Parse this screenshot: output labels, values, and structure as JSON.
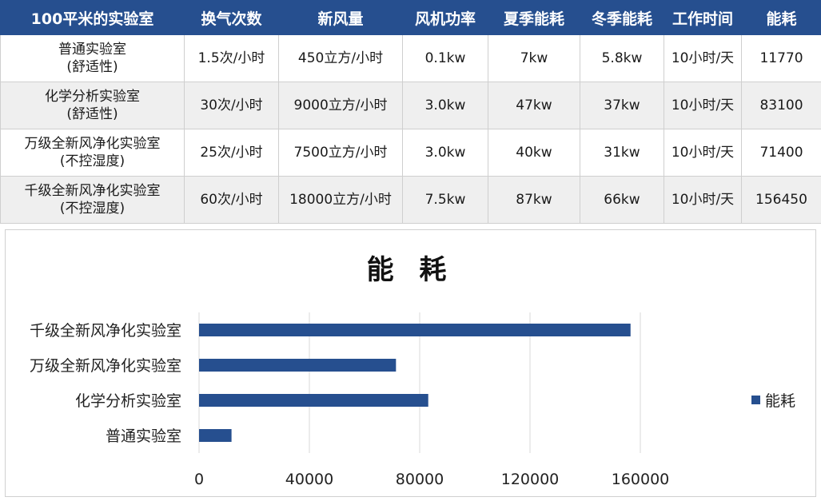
{
  "table": {
    "headers": [
      "100平米的实验室",
      "换气次数",
      "新风量",
      "风机功率",
      "夏季能耗",
      "冬季能耗",
      "工作时间",
      "能耗"
    ],
    "rows": [
      {
        "name": "普通实验室",
        "sub": "(舒适性)",
        "ach": "1.5次/小时",
        "air": "450立方/小时",
        "fan": "0.1kw",
        "summer": "7kw",
        "winter": "5.8kw",
        "hours": "10小时/天",
        "energy": "11770"
      },
      {
        "name": "化学分析实验室",
        "sub": "(舒适性)",
        "ach": "30次/小时",
        "air": "9000立方/小时",
        "fan": "3.0kw",
        "summer": "47kw",
        "winter": "37kw",
        "hours": "10小时/天",
        "energy": "83100"
      },
      {
        "name": "万级全新风净化实验室",
        "sub": "(不控湿度)",
        "ach": "25次/小时",
        "air": "7500立方/小时",
        "fan": "3.0kw",
        "summer": "40kw",
        "winter": "31kw",
        "hours": "10小时/天",
        "energy": "71400"
      },
      {
        "name": "千级全新风净化实验室",
        "sub": "(不控湿度)",
        "ach": "60次/小时",
        "air": "18000立方/小时",
        "fan": "7.5kw",
        "summer": "87kw",
        "winter": "66kw",
        "hours": "10小时/天",
        "energy": "156450"
      }
    ]
  },
  "colors": {
    "header_bg": "#264f8f",
    "bar": "#264f8f",
    "gridline": "#d9d9d9"
  },
  "chart_data": {
    "type": "bar",
    "orientation": "horizontal",
    "title": "能 耗",
    "categories": [
      "千级全新风净化实验室",
      "万级全新风净化实验室",
      "化学分析实验室",
      "普通实验室"
    ],
    "series": [
      {
        "name": "能耗",
        "values": [
          156450,
          71400,
          83100,
          11770
        ]
      }
    ],
    "xlim": [
      0,
      200000
    ],
    "xticks": [
      0,
      40000,
      80000,
      120000,
      160000
    ],
    "grid": true,
    "legend": "right"
  }
}
